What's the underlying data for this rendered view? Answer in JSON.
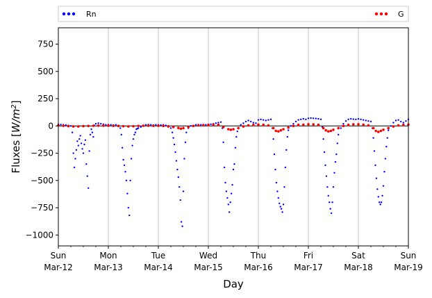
{
  "chart_data": {
    "type": "scatter",
    "title": "",
    "xlabel": "Day",
    "ylabel": "Fluxes [W/m²]",
    "ylabel_parts": {
      "pre": "Fluxes [",
      "base": "W/m",
      "sup": "2",
      "post": "]"
    },
    "xlim": [
      0,
      7
    ],
    "ylim": [
      -1100,
      900
    ],
    "y_ticks": [
      -1000,
      -750,
      -500,
      -250,
      0,
      250,
      500,
      750
    ],
    "y_tick_labels": [
      "−1000",
      "−750",
      "−500",
      "−250",
      "0",
      "250",
      "500",
      "750"
    ],
    "x_ticks": [
      {
        "x": 0,
        "line1": "Sun",
        "line2": "Mar-12"
      },
      {
        "x": 1,
        "line1": "Mon",
        "line2": "Mar-13"
      },
      {
        "x": 2,
        "line1": "Tue",
        "line2": "Mar-14"
      },
      {
        "x": 3,
        "line1": "Wed",
        "line2": "Mar-15"
      },
      {
        "x": 4,
        "line1": "Thu",
        "line2": "Mar-16"
      },
      {
        "x": 5,
        "line1": "Fri",
        "line2": "Mar-17"
      },
      {
        "x": 6,
        "line1": "Sat",
        "line2": "Mar-18"
      },
      {
        "x": 7,
        "line1": "Sun",
        "line2": "Mar-19"
      }
    ],
    "grid": "x-major",
    "zero_line": 0,
    "legend": {
      "placement": "top",
      "left_label": "Rn",
      "right_label": "G"
    },
    "colors": {
      "Rn": "#0000ff",
      "G": "#ff0000"
    },
    "series": [
      {
        "name": "Rn",
        "color": "#0000ff",
        "points": [
          [
            0.0,
            15
          ],
          [
            0.05,
            12
          ],
          [
            0.1,
            10
          ],
          [
            0.15,
            8
          ],
          [
            0.2,
            5
          ],
          [
            0.25,
            0
          ],
          [
            0.28,
            -60
          ],
          [
            0.3,
            -250
          ],
          [
            0.32,
            -380
          ],
          [
            0.34,
            -300
          ],
          [
            0.36,
            -220
          ],
          [
            0.38,
            -140
          ],
          [
            0.4,
            -180
          ],
          [
            0.42,
            -120
          ],
          [
            0.44,
            -90
          ],
          [
            0.46,
            -160
          ],
          [
            0.48,
            -210
          ],
          [
            0.5,
            -250
          ],
          [
            0.52,
            -170
          ],
          [
            0.54,
            -130
          ],
          [
            0.56,
            -350
          ],
          [
            0.58,
            -460
          ],
          [
            0.6,
            -570
          ],
          [
            0.62,
            -230
          ],
          [
            0.64,
            -80
          ],
          [
            0.66,
            -30
          ],
          [
            0.68,
            -60
          ],
          [
            0.7,
            -100
          ],
          [
            0.72,
            5
          ],
          [
            0.75,
            20
          ],
          [
            0.8,
            25
          ],
          [
            0.85,
            20
          ],
          [
            0.9,
            15
          ],
          [
            0.95,
            10
          ],
          [
            1.0,
            12
          ],
          [
            1.05,
            10
          ],
          [
            1.1,
            8
          ],
          [
            1.15,
            10
          ],
          [
            1.2,
            5
          ],
          [
            1.24,
            -20
          ],
          [
            1.26,
            -80
          ],
          [
            1.28,
            -200
          ],
          [
            1.3,
            -310
          ],
          [
            1.32,
            -360
          ],
          [
            1.34,
            -420
          ],
          [
            1.36,
            -500
          ],
          [
            1.38,
            -620
          ],
          [
            1.4,
            -750
          ],
          [
            1.42,
            -820
          ],
          [
            1.44,
            -500
          ],
          [
            1.46,
            -300
          ],
          [
            1.48,
            -180
          ],
          [
            1.5,
            -120
          ],
          [
            1.52,
            -80
          ],
          [
            1.54,
            -60
          ],
          [
            1.56,
            -30
          ],
          [
            1.58,
            -25
          ],
          [
            1.6,
            -20
          ],
          [
            1.65,
            -10
          ],
          [
            1.7,
            5
          ],
          [
            1.75,
            10
          ],
          [
            1.8,
            12
          ],
          [
            1.85,
            10
          ],
          [
            1.9,
            8
          ],
          [
            1.95,
            10
          ],
          [
            2.0,
            10
          ],
          [
            2.05,
            8
          ],
          [
            2.1,
            10
          ],
          [
            2.15,
            5
          ],
          [
            2.2,
            0
          ],
          [
            2.25,
            -20
          ],
          [
            2.28,
            -60
          ],
          [
            2.3,
            -110
          ],
          [
            2.32,
            -170
          ],
          [
            2.34,
            -240
          ],
          [
            2.36,
            -320
          ],
          [
            2.38,
            -400
          ],
          [
            2.4,
            -470
          ],
          [
            2.42,
            -560
          ],
          [
            2.44,
            -680
          ],
          [
            2.46,
            -880
          ],
          [
            2.48,
            -920
          ],
          [
            2.5,
            -600
          ],
          [
            2.52,
            -300
          ],
          [
            2.54,
            -150
          ],
          [
            2.56,
            -60
          ],
          [
            2.6,
            -20
          ],
          [
            2.65,
            0
          ],
          [
            2.7,
            5
          ],
          [
            2.75,
            10
          ],
          [
            2.8,
            12
          ],
          [
            2.85,
            10
          ],
          [
            2.9,
            8
          ],
          [
            2.95,
            10
          ],
          [
            3.0,
            12
          ],
          [
            3.05,
            15
          ],
          [
            3.1,
            20
          ],
          [
            3.15,
            25
          ],
          [
            3.2,
            30
          ],
          [
            3.25,
            35
          ],
          [
            3.28,
            -20
          ],
          [
            3.3,
            -150
          ],
          [
            3.32,
            -380
          ],
          [
            3.34,
            -520
          ],
          [
            3.36,
            -600
          ],
          [
            3.38,
            -660
          ],
          [
            3.4,
            -720
          ],
          [
            3.42,
            -790
          ],
          [
            3.44,
            -700
          ],
          [
            3.46,
            -620
          ],
          [
            3.48,
            -540
          ],
          [
            3.5,
            -400
          ],
          [
            3.52,
            -350
          ],
          [
            3.54,
            -200
          ],
          [
            3.56,
            -100
          ],
          [
            3.58,
            -50
          ],
          [
            3.6,
            -20
          ],
          [
            3.65,
            10
          ],
          [
            3.7,
            25
          ],
          [
            3.75,
            40
          ],
          [
            3.8,
            50
          ],
          [
            3.85,
            40
          ],
          [
            3.9,
            30
          ],
          [
            3.95,
            25
          ],
          [
            4.0,
            55
          ],
          [
            4.05,
            60
          ],
          [
            4.1,
            55
          ],
          [
            4.15,
            50
          ],
          [
            4.2,
            55
          ],
          [
            4.25,
            60
          ],
          [
            4.28,
            -20
          ],
          [
            4.3,
            -120
          ],
          [
            4.32,
            -260
          ],
          [
            4.34,
            -400
          ],
          [
            4.36,
            -520
          ],
          [
            4.38,
            -600
          ],
          [
            4.4,
            -660
          ],
          [
            4.42,
            -710
          ],
          [
            4.44,
            -740
          ],
          [
            4.46,
            -760
          ],
          [
            4.48,
            -790
          ],
          [
            4.5,
            -720
          ],
          [
            4.52,
            -560
          ],
          [
            4.54,
            -380
          ],
          [
            4.56,
            -220
          ],
          [
            4.58,
            -100
          ],
          [
            4.6,
            -40
          ],
          [
            4.65,
            0
          ],
          [
            4.7,
            20
          ],
          [
            4.75,
            40
          ],
          [
            4.8,
            55
          ],
          [
            4.85,
            60
          ],
          [
            4.9,
            65
          ],
          [
            4.95,
            60
          ],
          [
            5.0,
            70
          ],
          [
            5.05,
            72
          ],
          [
            5.1,
            70
          ],
          [
            5.15,
            68
          ],
          [
            5.2,
            65
          ],
          [
            5.25,
            60
          ],
          [
            5.28,
            -10
          ],
          [
            5.3,
            -120
          ],
          [
            5.32,
            -240
          ],
          [
            5.34,
            -360
          ],
          [
            5.36,
            -460
          ],
          [
            5.38,
            -560
          ],
          [
            5.4,
            -640
          ],
          [
            5.42,
            -700
          ],
          [
            5.44,
            -760
          ],
          [
            5.46,
            -800
          ],
          [
            5.48,
            -700
          ],
          [
            5.5,
            -560
          ],
          [
            5.52,
            -430
          ],
          [
            5.54,
            -330
          ],
          [
            5.56,
            -260
          ],
          [
            5.58,
            -160
          ],
          [
            5.6,
            -80
          ],
          [
            5.65,
            -20
          ],
          [
            5.7,
            20
          ],
          [
            5.75,
            45
          ],
          [
            5.8,
            60
          ],
          [
            5.85,
            65
          ],
          [
            5.9,
            62
          ],
          [
            5.95,
            60
          ],
          [
            6.0,
            65
          ],
          [
            6.05,
            60
          ],
          [
            6.1,
            55
          ],
          [
            6.15,
            50
          ],
          [
            6.2,
            45
          ],
          [
            6.25,
            40
          ],
          [
            6.28,
            -20
          ],
          [
            6.3,
            -110
          ],
          [
            6.32,
            -230
          ],
          [
            6.34,
            -360
          ],
          [
            6.36,
            -480
          ],
          [
            6.38,
            -580
          ],
          [
            6.4,
            -650
          ],
          [
            6.42,
            -700
          ],
          [
            6.44,
            -720
          ],
          [
            6.46,
            -700
          ],
          [
            6.48,
            -640
          ],
          [
            6.5,
            -550
          ],
          [
            6.52,
            -420
          ],
          [
            6.54,
            -300
          ],
          [
            6.56,
            -190
          ],
          [
            6.58,
            -110
          ],
          [
            6.6,
            -40
          ],
          [
            6.65,
            0
          ],
          [
            6.7,
            30
          ],
          [
            6.75,
            50
          ],
          [
            6.8,
            55
          ],
          [
            6.85,
            40
          ],
          [
            6.9,
            30
          ],
          [
            6.95,
            45
          ],
          [
            7.0,
            60
          ]
        ]
      },
      {
        "name": "G",
        "color": "#ff0000",
        "points": [
          [
            0.0,
            5
          ],
          [
            0.1,
            2
          ],
          [
            0.2,
            -2
          ],
          [
            0.3,
            -5
          ],
          [
            0.4,
            -5
          ],
          [
            0.5,
            -2
          ],
          [
            0.6,
            0
          ],
          [
            0.7,
            2
          ],
          [
            0.8,
            3
          ],
          [
            0.9,
            3
          ],
          [
            1.0,
            3
          ],
          [
            1.1,
            2
          ],
          [
            1.2,
            0
          ],
          [
            1.3,
            -3
          ],
          [
            1.4,
            -5
          ],
          [
            1.5,
            -3
          ],
          [
            1.6,
            0
          ],
          [
            1.7,
            2
          ],
          [
            1.8,
            3
          ],
          [
            1.9,
            2
          ],
          [
            2.0,
            2
          ],
          [
            2.1,
            0
          ],
          [
            2.2,
            -5
          ],
          [
            2.3,
            -10
          ],
          [
            2.4,
            -18
          ],
          [
            2.45,
            -25
          ],
          [
            2.5,
            -20
          ],
          [
            2.6,
            -10
          ],
          [
            2.7,
            0
          ],
          [
            2.8,
            5
          ],
          [
            2.9,
            8
          ],
          [
            3.0,
            10
          ],
          [
            3.1,
            12
          ],
          [
            3.2,
            10
          ],
          [
            3.3,
            -10
          ],
          [
            3.4,
            -30
          ],
          [
            3.45,
            -35
          ],
          [
            3.5,
            -30
          ],
          [
            3.6,
            -20
          ],
          [
            3.7,
            -5
          ],
          [
            3.8,
            5
          ],
          [
            3.9,
            10
          ],
          [
            4.0,
            12
          ],
          [
            4.1,
            10
          ],
          [
            4.2,
            5
          ],
          [
            4.3,
            -20
          ],
          [
            4.35,
            -45
          ],
          [
            4.4,
            -50
          ],
          [
            4.45,
            -40
          ],
          [
            4.5,
            -30
          ],
          [
            4.6,
            -15
          ],
          [
            4.7,
            0
          ],
          [
            4.8,
            10
          ],
          [
            4.9,
            12
          ],
          [
            5.0,
            15
          ],
          [
            5.1,
            14
          ],
          [
            5.2,
            10
          ],
          [
            5.3,
            -20
          ],
          [
            5.35,
            -40
          ],
          [
            5.4,
            -50
          ],
          [
            5.45,
            -45
          ],
          [
            5.5,
            -35
          ],
          [
            5.6,
            -20
          ],
          [
            5.7,
            0
          ],
          [
            5.8,
            10
          ],
          [
            5.9,
            15
          ],
          [
            6.0,
            15
          ],
          [
            6.1,
            12
          ],
          [
            6.2,
            5
          ],
          [
            6.3,
            -20
          ],
          [
            6.35,
            -45
          ],
          [
            6.4,
            -55
          ],
          [
            6.45,
            -45
          ],
          [
            6.5,
            -35
          ],
          [
            6.6,
            -20
          ],
          [
            6.7,
            -5
          ],
          [
            6.8,
            5
          ],
          [
            6.9,
            10
          ],
          [
            7.0,
            12
          ]
        ]
      }
    ]
  }
}
